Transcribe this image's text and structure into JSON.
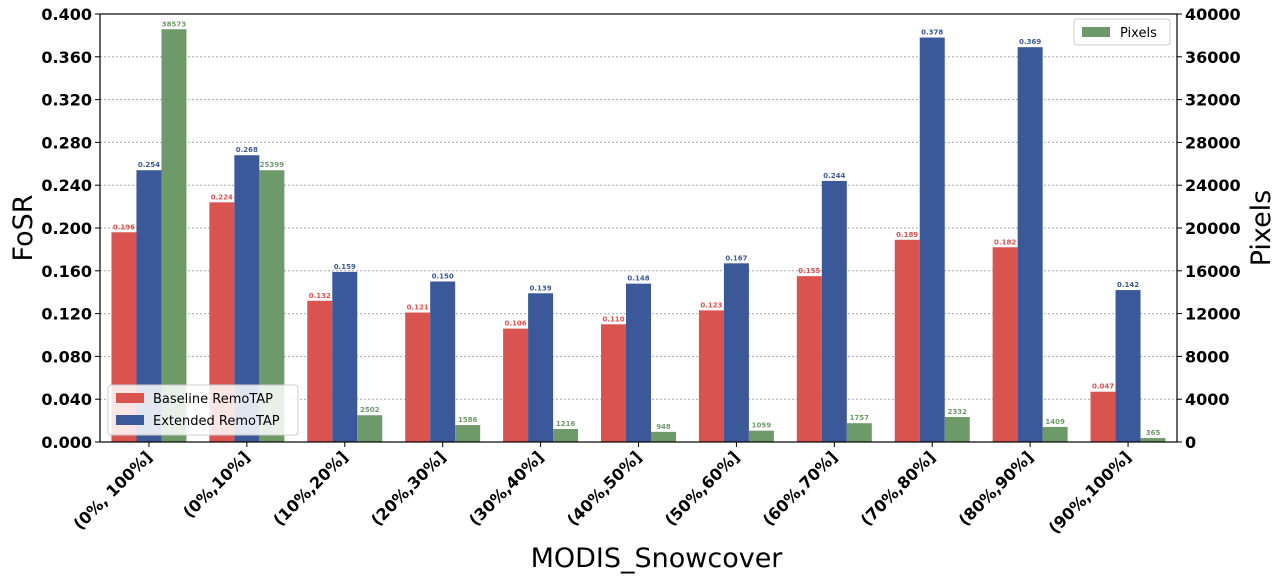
{
  "chart_data": {
    "type": "bar",
    "xlabel": "MODIS_Snowcover",
    "ylabel_left": "FoSR",
    "ylabel_right": "Pixels",
    "ylim_left": [
      0,
      0.4
    ],
    "ylim_right": [
      0,
      40000
    ],
    "yticks_left": [
      "0.000",
      "0.040",
      "0.080",
      "0.120",
      "0.160",
      "0.200",
      "0.240",
      "0.280",
      "0.320",
      "0.360",
      "0.400"
    ],
    "yticks_right": [
      "0",
      "4000",
      "8000",
      "12000",
      "16000",
      "20000",
      "24000",
      "28000",
      "32000",
      "36000",
      "40000"
    ],
    "grid": "horizontal dotted",
    "categories": [
      "(0%, 100%]",
      "(0%,10%]",
      "(10%,20%]",
      "(20%,30%]",
      "(30%,40%]",
      "(40%,50%]",
      "(50%,60%]",
      "(60%,70%]",
      "(70%,80%]",
      "(80%,90%]",
      "(90%,100%]"
    ],
    "series": [
      {
        "name": "Baseline RemoTAP",
        "axis": "left",
        "color": "#d9534f",
        "values": [
          0.196,
          0.224,
          0.132,
          0.121,
          0.106,
          0.11,
          0.123,
          0.155,
          0.189,
          0.182,
          0.047
        ],
        "labels": [
          "0.196",
          "0.224",
          "0.132",
          "0.121",
          "0.106",
          "0.110",
          "0.123",
          "0.155",
          "0.189",
          "0.182",
          "0.047"
        ]
      },
      {
        "name": "Extended RemoTAP",
        "axis": "left",
        "color": "#3b5998",
        "values": [
          0.254,
          0.268,
          0.159,
          0.15,
          0.139,
          0.148,
          0.167,
          0.244,
          0.378,
          0.369,
          0.142
        ],
        "labels": [
          "0.254",
          "0.268",
          "0.159",
          "0.150",
          "0.139",
          "0.148",
          "0.167",
          "0.244",
          "0.378",
          "0.369",
          "0.142"
        ]
      },
      {
        "name": "Pixels",
        "axis": "right",
        "color": "#6e9a6a",
        "values": [
          38573,
          25399,
          2502,
          1586,
          1216,
          948,
          1059,
          1757,
          2332,
          1409,
          365
        ],
        "labels": [
          "38573",
          "25399",
          "2502",
          "1586",
          "1216",
          "948",
          "1059",
          "1757",
          "2332",
          "1409",
          "365"
        ]
      }
    ],
    "legends": {
      "left_bottom": [
        "Baseline RemoTAP",
        "Extended RemoTAP"
      ],
      "right_top": [
        "Pixels"
      ]
    }
  }
}
